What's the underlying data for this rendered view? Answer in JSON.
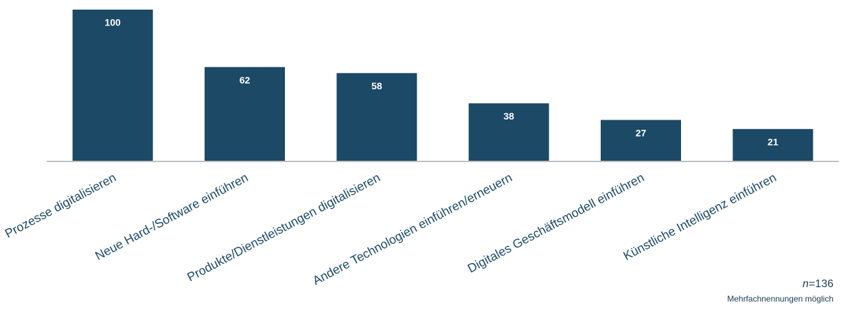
{
  "chart_data": {
    "type": "bar",
    "categories": [
      "Prozesse digitalisieren",
      "Neue Hard-/Software einführen",
      "Produkte/Dienstleistungen digitalisieren",
      "Andere Technologien einführen/erneuern",
      "Digitales Geschäftsmodell einführen",
      "Künstliche Intelligenz einführen"
    ],
    "values": [
      100,
      62,
      58,
      38,
      27,
      21
    ],
    "color": "#1b4966",
    "ylim": [
      0,
      100
    ],
    "footnote": {
      "symbol": "n",
      "text": "=136",
      "note": "Mehrfachnennungen möglich"
    }
  }
}
